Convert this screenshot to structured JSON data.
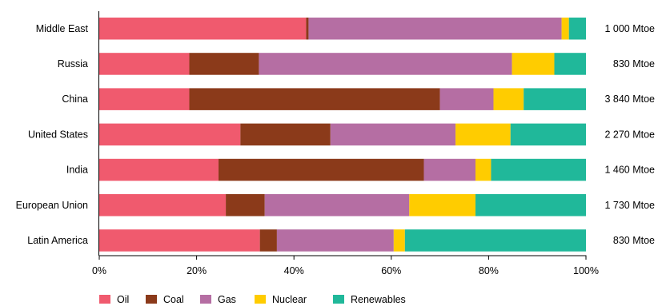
{
  "chart_data": {
    "type": "bar",
    "orientation": "horizontal",
    "stacked": "percent",
    "categories": [
      "Middle East",
      "Russia",
      "China",
      "United States",
      "India",
      "European Union",
      "Latin America"
    ],
    "series": [
      {
        "name": "Oil",
        "color": "#f05a6e",
        "values": [
          42.5,
          18.5,
          18.5,
          29,
          24.5,
          26,
          33
        ]
      },
      {
        "name": "Coal",
        "color": "#8b3a1a",
        "values": [
          0.5,
          14.3,
          51.5,
          18.5,
          42.2,
          8,
          3.5
        ]
      },
      {
        "name": "Gas",
        "color": "#b56ea3",
        "values": [
          52,
          52,
          11,
          25.7,
          10.6,
          29.7,
          24
        ]
      },
      {
        "name": "Nuclear",
        "color": "#ffcc00",
        "values": [
          1.5,
          8.7,
          6.2,
          11.3,
          3.2,
          13.6,
          2.3
        ]
      },
      {
        "name": "Renewables",
        "color": "#20b89a",
        "values": [
          3.5,
          6.5,
          12.8,
          15.5,
          19.5,
          22.7,
          37.2
        ]
      }
    ],
    "totals": [
      "1 000 Mtoe",
      "830 Mtoe",
      "3 840 Mtoe",
      "2 270 Mtoe",
      "1 460 Mtoe",
      "1 730 Mtoe",
      "830 Mtoe"
    ],
    "xlim": [
      0,
      100
    ],
    "xticks": [
      "0%",
      "20%",
      "40%",
      "60%",
      "80%",
      "100%"
    ],
    "xlabel": "",
    "ylabel": "",
    "title": "",
    "grid": false,
    "legend_position": "bottom-left"
  }
}
